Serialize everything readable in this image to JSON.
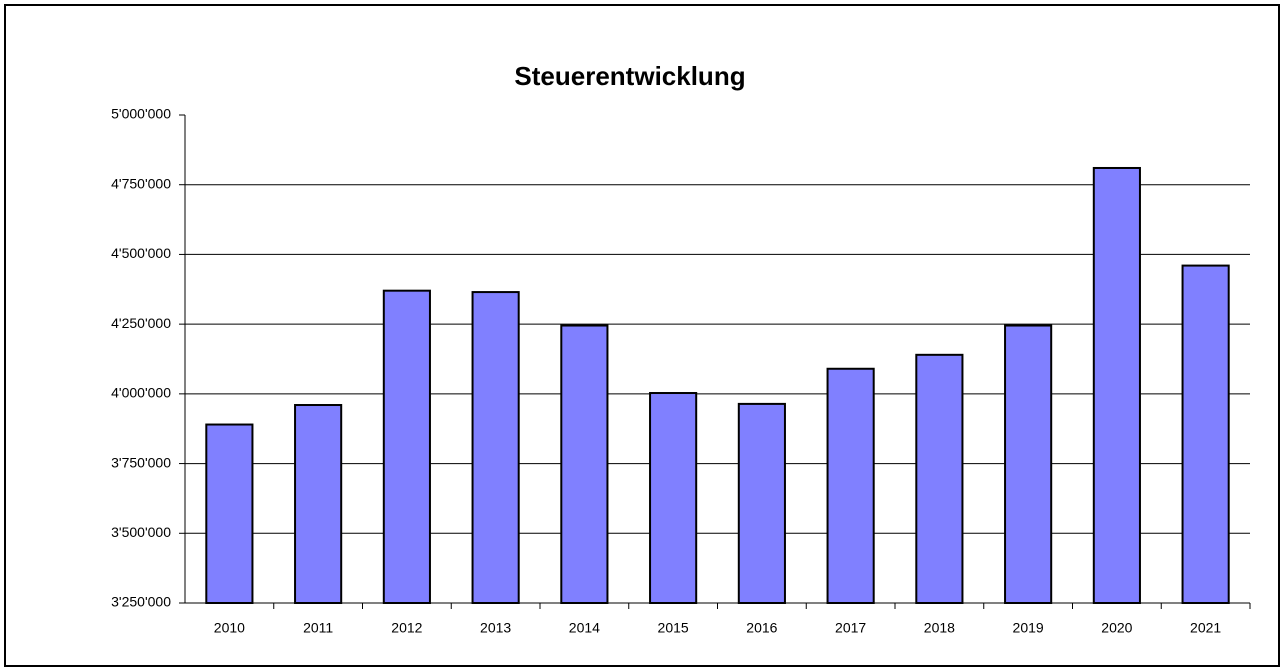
{
  "chart_data": {
    "type": "bar",
    "title": "Steuerentwicklung",
    "categories": [
      "2010",
      "2011",
      "2012",
      "2013",
      "2014",
      "2015",
      "2016",
      "2017",
      "2018",
      "2019",
      "2020",
      "2021"
    ],
    "values": [
      3890000,
      3960000,
      4370000,
      4365000,
      4245000,
      4003000,
      3964000,
      4090000,
      4140000,
      4245000,
      4810000,
      4460000
    ],
    "color": "#8080ff",
    "ylim": [
      3250000,
      5000000
    ],
    "yticks": [
      {
        "value": 3250000,
        "label": "3'250'000"
      },
      {
        "value": 3500000,
        "label": "3'500'000"
      },
      {
        "value": 3750000,
        "label": "3'750'000"
      },
      {
        "value": 4000000,
        "label": "4'000'000"
      },
      {
        "value": 4250000,
        "label": "4'250'000"
      },
      {
        "value": 4500000,
        "label": "4'500'000"
      },
      {
        "value": 4750000,
        "label": "4'750'000"
      },
      {
        "value": 5000000,
        "label": "5'000'000"
      }
    ],
    "grid": true
  }
}
